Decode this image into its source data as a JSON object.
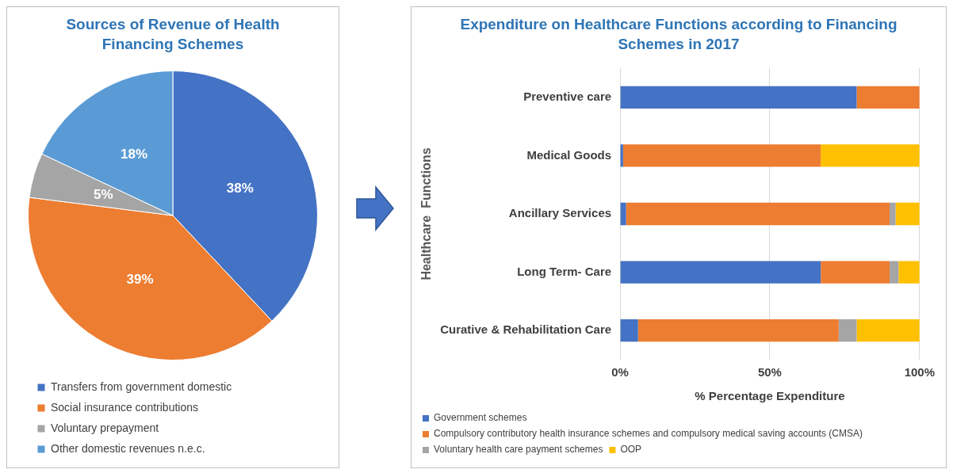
{
  "chart_data": [
    {
      "type": "pie",
      "title": "Sources of Revenue of Health Financing Schemes",
      "categories": [
        "Transfers from government domestic",
        "Social insurance contributions",
        "Voluntary prepayment",
        "Other domestic revenues n.e.c."
      ],
      "values": [
        38,
        39,
        5,
        18
      ],
      "colors": [
        "#4472c4",
        "#ed7d31",
        "#a5a5a5",
        "#5b9bd5"
      ],
      "value_labels": [
        "38%",
        "39%",
        "5%",
        "18%"
      ],
      "legend": "bottom"
    },
    {
      "type": "bar",
      "orientation": "horizontal",
      "stacked": true,
      "title": "Expenditure on Healthcare Functions according to Financing Schemes in 2017",
      "xlabel": "% Percentage Expenditure",
      "ylabel": "Healthcare  Functions",
      "categories": [
        "Preventive care",
        "Medical Goods",
        "Ancillary Services",
        "Long Term- Care",
        "Curative & Rehabilitation Care"
      ],
      "xlim": [
        0,
        100
      ],
      "xticks": [
        {
          "value": 0,
          "label": "0%"
        },
        {
          "value": 50,
          "label": "50%"
        },
        {
          "value": 100,
          "label": "100%"
        }
      ],
      "grid": "x",
      "legend": "bottom",
      "series": [
        {
          "name": "Government schemes",
          "color": "#4472c4",
          "values": [
            79,
            1,
            2,
            67,
            6
          ]
        },
        {
          "name": "Compulsory contributory health insurance schemes and compulsory medical saving accounts (CMSA)",
          "color": "#ed7d31",
          "values": [
            21,
            66,
            88,
            23,
            67
          ]
        },
        {
          "name": "Voluntary health care payment schemes",
          "color": "#a5a5a5",
          "values": [
            0,
            0,
            2,
            3,
            6
          ]
        },
        {
          "name": "OOP",
          "color": "#ffc000",
          "values": [
            0,
            33,
            8,
            7,
            21
          ]
        }
      ]
    }
  ]
}
